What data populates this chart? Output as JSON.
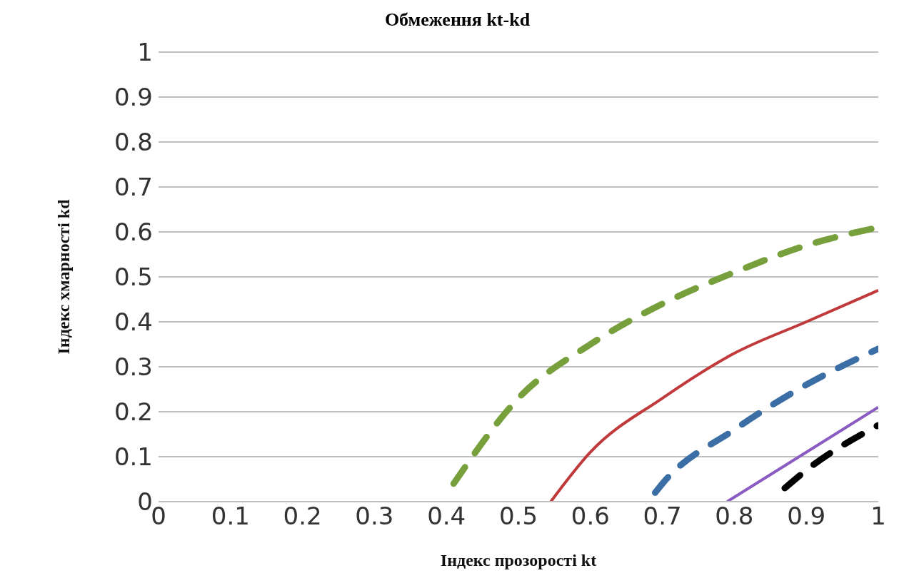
{
  "chart_data": {
    "type": "line",
    "title": "Обмеження kt-kd",
    "xlabel": "Індекс прозорості  kt",
    "ylabel": "Індекс хмарності  kd",
    "xlim": [
      0,
      1
    ],
    "xticks": [
      0,
      0.1,
      0.2,
      0.3,
      0.4,
      0.5,
      0.6,
      0.7,
      0.8,
      0.9,
      1
    ],
    "ylim": [
      0,
      1
    ],
    "yticks": [
      0,
      0.1,
      0.2,
      0.3,
      0.4,
      0.5,
      0.6,
      0.7,
      0.8,
      0.9,
      1
    ],
    "grid": "y",
    "marker": "none",
    "series": [
      {
        "color": "#77a03c",
        "line_style": "dashed",
        "x": [
          0.41,
          0.5,
          0.6,
          0.7,
          0.8,
          0.9,
          1
        ],
        "values": [
          0.04,
          0.23,
          0.35,
          0.44,
          0.51,
          0.57,
          0.61
        ]
      },
      {
        "color": "#c0393b",
        "line_style": "solid",
        "x": [
          0.545,
          0.6,
          0.7,
          0.8,
          0.9,
          1
        ],
        "values": [
          0,
          0.11,
          0.23,
          0.33,
          0.4,
          0.47
        ]
      },
      {
        "color": "#3a6ea5",
        "line_style": "dashed",
        "x": [
          0.69,
          0.7,
          0.8,
          0.9,
          1
        ],
        "values": [
          0.02,
          0.04,
          0.16,
          0.26,
          0.34
        ]
      },
      {
        "color": "#8a5cc2",
        "line_style": "solid",
        "x": [
          0.79,
          0.9,
          1
        ],
        "values": [
          0,
          0.11,
          0.21
        ]
      },
      {
        "color": "#000000",
        "line_style": "dashed",
        "x": [
          0.87,
          0.9,
          1
        ],
        "values": [
          0.03,
          0.07,
          0.17
        ]
      }
    ]
  }
}
